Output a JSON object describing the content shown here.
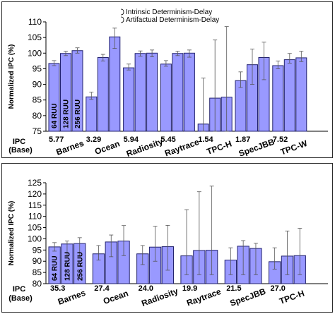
{
  "colors": {
    "bar_fill": "#9999ff",
    "bar_stroke": "#22226e",
    "axis": "#000000",
    "error_bar": "#555555"
  },
  "bar_labels": [
    "64 RUU",
    "128 RUU",
    "256 RUU"
  ],
  "ipc_label": "IPC",
  "base_label": "(Base)",
  "chart_data": [
    {
      "type": "bar",
      "ylabel": "Normalized IPC (%)",
      "ylim": [
        75,
        110
      ],
      "yticks": [
        75,
        80,
        85,
        90,
        95,
        100,
        105,
        110
      ],
      "categories": [
        "Barnes",
        "Ocean",
        "Radiosity",
        "Raytrace",
        "TPC-H",
        "SpecJBB",
        "TPC-W"
      ],
      "base_ipc": [
        "5.77",
        "3.29",
        "5.94",
        "5.45",
        "1.54",
        "1.87",
        "7.52"
      ],
      "legend": [
        "Intrinsic Determinism-Delay",
        "Artifactual Determinism-Delay"
      ],
      "series": [
        {
          "name": "64 RUU",
          "values": [
            96.7,
            86.0,
            95.3,
            96.5,
            77.3,
            91.2,
            96.0
          ],
          "err_low": [
            96.0,
            85.2,
            94.6,
            95.8,
            75.0,
            89.0,
            95.0
          ],
          "err_high": [
            97.6,
            87.5,
            96.5,
            97.6,
            92.0,
            94.0,
            97.5
          ]
        },
        {
          "name": "128 RUU",
          "values": [
            99.9,
            98.6,
            99.9,
            99.9,
            85.6,
            96.3,
            97.9
          ],
          "err_low": [
            99.2,
            97.5,
            99.0,
            99.2,
            75.0,
            90.0,
            96.8
          ],
          "err_high": [
            100.6,
            99.6,
            100.7,
            100.6,
            104.2,
            101.3,
            99.9
          ]
        },
        {
          "name": "256 RUU",
          "values": [
            100.8,
            105.2,
            100.0,
            100.0,
            85.9,
            98.6,
            98.5
          ],
          "err_low": [
            100.0,
            101.5,
            98.8,
            98.7,
            75.0,
            91.5,
            97.3
          ],
          "err_high": [
            101.7,
            108.0,
            101.0,
            101.0,
            108.5,
            103.5,
            100.6
          ]
        }
      ]
    },
    {
      "type": "bar",
      "ylabel": "Normalized IPC (%)",
      "ylim": [
        80,
        125
      ],
      "yticks": [
        80,
        85,
        90,
        95,
        100,
        105,
        110,
        115,
        120,
        125
      ],
      "categories": [
        "Barnes",
        "Ocean",
        "Radiosity",
        "Raytrace",
        "SpecJBB",
        "TPC-H"
      ],
      "base_ipc": [
        "35.3",
        "27.4",
        "24.0",
        "19.9",
        "21.5",
        "27.0"
      ],
      "series": [
        {
          "name": "64 RUU",
          "values": [
            96.4,
            93.3,
            93.3,
            92.4,
            90.5,
            89.8
          ],
          "err_low": [
            94.5,
            90.5,
            88.5,
            84.0,
            84.0,
            86.5
          ],
          "err_high": [
            98.3,
            97.0,
            97.0,
            113.0,
            96.0,
            96.0
          ]
        },
        {
          "name": "128 RUU",
          "values": [
            97.7,
            98.6,
            96.3,
            94.8,
            96.7,
            92.3
          ],
          "err_low": [
            92.5,
            92.0,
            90.0,
            84.0,
            84.0,
            84.0
          ],
          "err_high": [
            99.0,
            101.7,
            105.6,
            121.0,
            99.2,
            103.5
          ]
        },
        {
          "name": "256 RUU",
          "values": [
            97.9,
            99.0,
            96.5,
            94.9,
            95.7,
            92.5
          ],
          "err_low": [
            92.5,
            92.5,
            86.0,
            84.0,
            84.0,
            84.0
          ],
          "err_high": [
            100.5,
            105.9,
            106.0,
            123.5,
            98.0,
            104.7
          ]
        }
      ]
    }
  ]
}
